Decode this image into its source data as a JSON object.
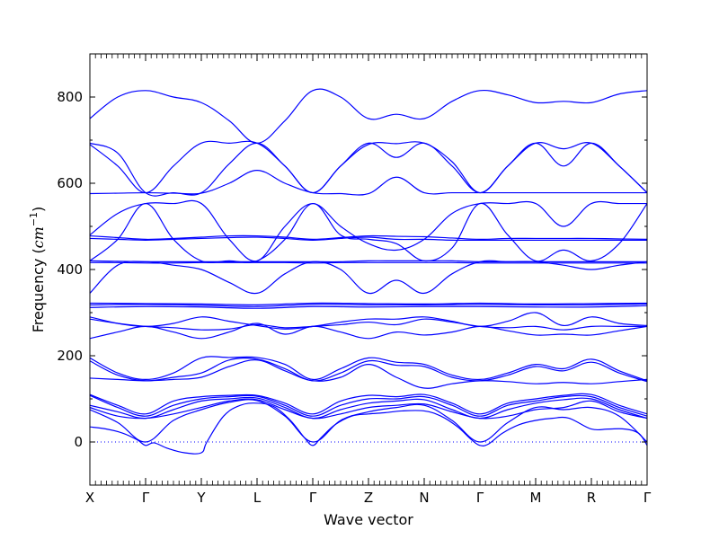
{
  "chart_data": {
    "type": "line",
    "title": "",
    "xlabel": "Wave vector",
    "ylabel": "Frequency (cm⁻¹)",
    "ylabel_parts": {
      "text": "Frequency (",
      "unit_base": "cm",
      "unit_exp": "−1",
      "close": ")"
    },
    "ylim": [
      -100,
      900
    ],
    "yticks": [
      0,
      200,
      400,
      600,
      800
    ],
    "xlim": [
      0,
      10
    ],
    "x_labels": [
      "X",
      "Γ",
      "Y",
      "L",
      "Γ",
      "Z",
      "N",
      "Γ",
      "M",
      "R",
      "Γ"
    ],
    "x_points": [
      0,
      1,
      2,
      3,
      4,
      5,
      6,
      7,
      8,
      9,
      10
    ],
    "zero_line": true,
    "line_color": "#0000ff",
    "zero_line_color": "#0000ff",
    "series": [
      {
        "x": [
          0,
          0.5,
          1,
          1.5,
          2,
          2.5,
          3,
          3.5,
          4,
          4.5,
          5,
          5.5,
          6,
          6.5,
          7,
          7.5,
          8,
          8.5,
          9,
          9.5,
          10
        ],
        "values": [
          750,
          800,
          815,
          800,
          787,
          745,
          693,
          745,
          815,
          800,
          750,
          760,
          750,
          790,
          815,
          805,
          787,
          790,
          787,
          807,
          815
        ]
      },
      {
        "x": [
          0,
          0.5,
          1,
          1.5,
          2,
          2.5,
          3,
          3.5,
          4,
          4.5,
          5,
          5.5,
          6,
          6.5,
          7,
          7.5,
          8,
          8.5,
          9,
          9.5,
          10
        ],
        "values": [
          693,
          670,
          578,
          578,
          578,
          645,
          693,
          640,
          578,
          640,
          690,
          692,
          693,
          650,
          578,
          640,
          693,
          680,
          693,
          640,
          578
        ]
      },
      {
        "x": [
          0,
          0.5,
          1,
          1.5,
          2,
          2.5,
          3,
          3.5,
          4,
          4.5,
          5,
          5.5,
          6,
          6.5,
          7,
          7.5,
          8,
          8.5,
          9,
          9.5,
          10
        ],
        "values": [
          690,
          640,
          578,
          640,
          693,
          693,
          693,
          640,
          578,
          640,
          693,
          660,
          693,
          640,
          578,
          640,
          693,
          640,
          693,
          640,
          578
        ]
      },
      {
        "x": [
          0,
          0.5,
          1,
          1.5,
          2,
          2.5,
          3,
          3.5,
          4,
          4.5,
          5,
          5.5,
          6,
          6.5,
          7,
          7.5,
          8,
          8.5,
          9,
          9.5,
          10
        ],
        "values": [
          576,
          577,
          578,
          577,
          577,
          600,
          630,
          600,
          578,
          576,
          576,
          614,
          578,
          578,
          578,
          578,
          578,
          578,
          578,
          578,
          578
        ]
      },
      {
        "x": [
          0,
          0.5,
          1,
          1.5,
          2,
          2.5,
          3,
          3.5,
          4,
          4.5,
          5,
          5.5,
          6,
          6.5,
          7,
          7.5,
          8,
          8.5,
          9,
          9.5,
          10
        ],
        "values": [
          480,
          530,
          553,
          553,
          553,
          470,
          420,
          500,
          553,
          500,
          460,
          445,
          470,
          530,
          553,
          553,
          553,
          500,
          553,
          553,
          553
        ]
      },
      {
        "x": [
          0,
          0.5,
          1,
          1.5,
          2,
          2.5,
          3,
          3.5,
          4,
          4.5,
          5,
          5.5,
          6,
          6.5,
          7,
          7.5,
          8,
          8.5,
          9,
          9.5,
          10
        ],
        "values": [
          478,
          474,
          470,
          472,
          475,
          478,
          478,
          475,
          470,
          474,
          478,
          477,
          476,
          473,
          470,
          472,
          472,
          472,
          472,
          471,
          470
        ]
      },
      {
        "x": [
          0,
          0.5,
          1,
          1.5,
          2,
          2.5,
          3,
          3.5,
          4,
          4.5,
          5,
          5.5,
          6,
          6.5,
          7,
          7.5,
          8,
          8.5,
          9,
          9.5,
          10
        ],
        "values": [
          472,
          470,
          468,
          470,
          472,
          474,
          475,
          472,
          468,
          472,
          475,
          470,
          470,
          468,
          468,
          468,
          468,
          468,
          468,
          468,
          468
        ]
      },
      {
        "x": [
          0,
          0.5,
          1,
          1.5,
          2,
          2.5,
          3,
          3.5,
          4,
          4.5,
          5,
          5.5,
          6,
          6.5,
          7,
          7.5,
          8,
          8.5,
          9,
          9.5,
          10
        ],
        "values": [
          420,
          470,
          553,
          470,
          420,
          420,
          420,
          470,
          553,
          480,
          470,
          460,
          420,
          450,
          553,
          480,
          420,
          445,
          420,
          460,
          553
        ]
      },
      {
        "x": [
          0,
          0.5,
          1,
          1.5,
          2,
          2.5,
          3,
          3.5,
          4,
          4.5,
          5,
          5.5,
          6,
          6.5,
          7,
          7.5,
          8,
          8.5,
          9,
          9.5,
          10
        ],
        "values": [
          420,
          419,
          418,
          418,
          418,
          418,
          418,
          418,
          418,
          418,
          420,
          420,
          420,
          420,
          418,
          418,
          418,
          418,
          418,
          418,
          418
        ]
      },
      {
        "x": [
          0,
          0.5,
          1,
          1.5,
          2,
          2.5,
          3,
          3.5,
          4,
          4.5,
          5,
          5.5,
          6,
          6.5,
          7,
          7.5,
          8,
          8.5,
          9,
          9.5,
          10
        ],
        "values": [
          416,
          416,
          415,
          415,
          416,
          416,
          416,
          416,
          415,
          416,
          416,
          416,
          416,
          416,
          415,
          415,
          415,
          415,
          415,
          415,
          415
        ]
      },
      {
        "x": [
          0,
          0.5,
          1,
          1.5,
          2,
          2.5,
          3,
          3.5,
          4,
          4.5,
          5,
          5.5,
          6,
          6.5,
          7,
          7.5,
          8,
          8.5,
          9,
          9.5,
          10
        ],
        "values": [
          345,
          410,
          418,
          410,
          400,
          370,
          345,
          390,
          418,
          400,
          345,
          375,
          345,
          390,
          418,
          418,
          418,
          410,
          400,
          410,
          418
        ]
      },
      {
        "x": [
          0,
          1,
          2,
          3,
          4,
          5,
          6,
          7,
          8,
          9,
          10
        ],
        "values": [
          322,
          321,
          320,
          318,
          322,
          321,
          320,
          322,
          320,
          321,
          322
        ]
      },
      {
        "x": [
          0,
          1,
          2,
          3,
          4,
          5,
          6,
          7,
          8,
          9,
          10
        ],
        "values": [
          318,
          319,
          317,
          314,
          319,
          318,
          318,
          319,
          318,
          318,
          320
        ]
      },
      {
        "x": [
          0,
          1,
          2,
          3,
          4,
          5,
          6,
          7,
          8,
          9,
          10
        ],
        "values": [
          312,
          314,
          313,
          310,
          314,
          313,
          314,
          314,
          313,
          313,
          316
        ]
      },
      {
        "x": [
          0,
          0.5,
          1,
          1.5,
          2,
          2.5,
          3,
          3.5,
          4,
          4.5,
          5,
          5.5,
          6,
          6.5,
          7,
          7.5,
          8,
          8.5,
          9,
          9.5,
          10
        ],
        "values": [
          290,
          275,
          268,
          275,
          290,
          280,
          270,
          262,
          268,
          278,
          285,
          285,
          290,
          280,
          268,
          280,
          300,
          270,
          290,
          275,
          270
        ]
      },
      {
        "x": [
          0,
          0.5,
          1,
          1.5,
          2,
          2.5,
          3,
          3.5,
          4,
          4.5,
          5,
          5.5,
          6,
          6.5,
          7,
          7.5,
          8,
          8.5,
          9,
          9.5,
          10
        ],
        "values": [
          285,
          275,
          268,
          265,
          260,
          262,
          272,
          265,
          268,
          272,
          278,
          272,
          285,
          278,
          268,
          265,
          268,
          260,
          268,
          268,
          268
        ]
      },
      {
        "x": [
          0,
          0.5,
          1,
          1.5,
          2,
          2.5,
          3,
          3.5,
          4,
          4.5,
          5,
          5.5,
          6,
          6.5,
          7,
          7.5,
          8,
          8.5,
          9,
          9.5,
          10
        ],
        "values": [
          240,
          255,
          268,
          255,
          240,
          255,
          275,
          250,
          268,
          255,
          240,
          255,
          248,
          255,
          268,
          258,
          248,
          250,
          248,
          258,
          268
        ]
      },
      {
        "x": [
          0,
          0.5,
          1,
          1.5,
          2,
          2.5,
          3,
          3.5,
          4,
          4.5,
          5,
          5.5,
          6,
          6.5,
          7,
          7.5,
          8,
          8.5,
          9,
          9.5,
          10
        ],
        "values": [
          195,
          160,
          145,
          160,
          195,
          196,
          196,
          180,
          145,
          170,
          195,
          185,
          180,
          155,
          145,
          160,
          180,
          170,
          192,
          165,
          142
        ]
      },
      {
        "x": [
          0,
          0.5,
          1,
          1.5,
          2,
          2.5,
          3,
          3.5,
          4,
          4.5,
          5,
          5.5,
          6,
          6.5,
          7,
          7.5,
          8,
          8.5,
          9,
          9.5,
          10
        ],
        "values": [
          188,
          155,
          142,
          150,
          160,
          190,
          192,
          170,
          142,
          160,
          188,
          178,
          175,
          150,
          142,
          155,
          175,
          165,
          185,
          160,
          140
        ]
      },
      {
        "x": [
          0,
          0.5,
          1,
          1.5,
          2,
          2.5,
          3,
          3.5,
          4,
          4.5,
          5,
          5.5,
          6,
          6.5,
          7,
          7.5,
          8,
          8.5,
          9,
          9.5,
          10
        ],
        "values": [
          148,
          145,
          142,
          145,
          150,
          175,
          190,
          165,
          142,
          150,
          180,
          150,
          125,
          135,
          142,
          140,
          135,
          138,
          135,
          140,
          145
        ]
      },
      {
        "x": [
          0,
          0.5,
          1,
          1.5,
          2,
          2.5,
          3,
          3.5,
          4,
          4.5,
          5,
          5.5,
          6,
          6.5,
          7,
          7.5,
          8,
          8.5,
          9,
          9.5,
          10
        ],
        "values": [
          110,
          85,
          65,
          95,
          105,
          108,
          108,
          90,
          65,
          95,
          108,
          105,
          110,
          90,
          65,
          90,
          100,
          108,
          110,
          85,
          65
        ]
      },
      {
        "x": [
          0,
          0.5,
          1,
          1.5,
          2,
          2.5,
          3,
          3.5,
          4,
          4.5,
          5,
          5.5,
          6,
          6.5,
          7,
          7.5,
          8,
          8.5,
          9,
          9.5,
          10
        ],
        "values": [
          108,
          80,
          60,
          85,
          100,
          105,
          106,
          85,
          60,
          85,
          100,
          100,
          105,
          85,
          60,
          85,
          95,
          105,
          105,
          80,
          60
        ]
      },
      {
        "x": [
          0,
          0.5,
          1,
          1.5,
          2,
          2.5,
          3,
          3.5,
          4,
          4.5,
          5,
          5.5,
          6,
          6.5,
          7,
          7.5,
          8,
          8.5,
          9,
          9.5,
          10
        ],
        "values": [
          85,
          70,
          55,
          75,
          95,
          100,
          102,
          80,
          55,
          75,
          90,
          95,
          98,
          75,
          55,
          75,
          90,
          98,
          100,
          75,
          55
        ]
      },
      {
        "x": [
          0,
          0.5,
          1,
          1.5,
          2,
          2.5,
          3,
          3.5,
          4,
          4.5,
          5,
          5.5,
          6,
          6.5,
          7,
          7.5,
          8,
          8.5,
          9,
          9.5,
          10
        ],
        "values": [
          80,
          60,
          55,
          65,
          80,
          95,
          98,
          75,
          55,
          65,
          80,
          85,
          88,
          70,
          55,
          60,
          75,
          80,
          95,
          70,
          55
        ]
      },
      {
        "x": [
          0,
          0.5,
          1,
          1.5,
          2,
          2.5,
          3,
          3.5,
          4,
          4.5,
          5,
          5.5,
          6,
          6.5,
          7,
          7.5,
          8,
          8.5,
          9,
          9.5,
          10
        ],
        "values": [
          75,
          45,
          0,
          50,
          75,
          92,
          96,
          60,
          0,
          50,
          70,
          80,
          85,
          50,
          0,
          45,
          80,
          75,
          80,
          60,
          0
        ]
      },
      {
        "x": [
          0,
          0.3,
          0.6,
          0.85,
          1,
          1.15,
          1.4,
          1.7,
          2,
          2.1,
          2.4,
          2.7,
          3,
          3.3,
          3.6,
          3.85,
          4,
          4.15,
          4.4,
          4.7,
          5,
          5.3,
          5.6,
          6,
          6.3,
          6.6,
          6.85,
          7,
          7.15,
          7.4,
          7.7,
          8,
          8.3,
          8.6,
          9,
          9.3,
          9.6,
          9.85,
          10
        ],
        "values": [
          35,
          30,
          20,
          5,
          -8,
          -2,
          -15,
          -25,
          -25,
          0,
          60,
          85,
          90,
          82,
          50,
          10,
          -8,
          10,
          40,
          60,
          65,
          68,
          72,
          72,
          60,
          35,
          5,
          -8,
          -5,
          20,
          40,
          50,
          55,
          55,
          30,
          30,
          30,
          20,
          -8
        ]
      }
    ]
  }
}
